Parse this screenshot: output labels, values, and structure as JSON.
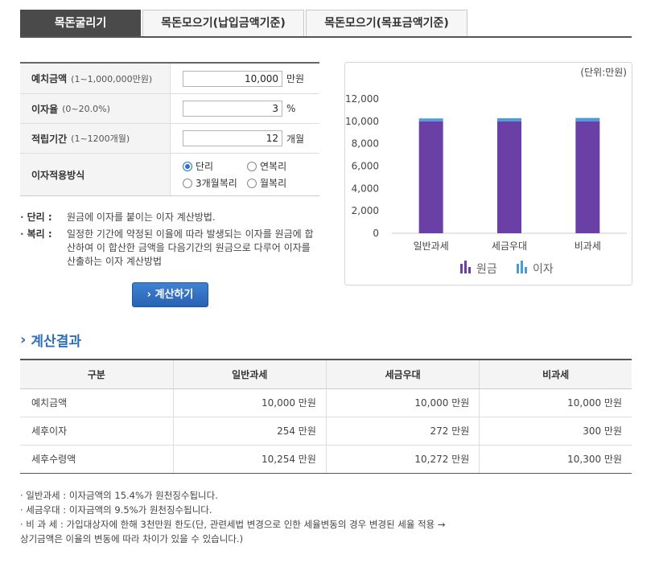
{
  "tabs": [
    {
      "label": "목돈굴리기"
    },
    {
      "label": "목돈모으기(납입금액기준)"
    },
    {
      "label": "목돈모으기(목표금액기준)"
    }
  ],
  "form": {
    "deposit": {
      "label": "예치금액",
      "range": "(1~1,000,000만원)",
      "value": "10,000",
      "unit": "만원"
    },
    "rate": {
      "label": "이자율",
      "range": "(0~20.0%)",
      "value": "3",
      "unit": "%"
    },
    "period": {
      "label": "적립기간",
      "range": "(1~1200개월)",
      "value": "12",
      "unit": "개월"
    },
    "method": {
      "label": "이자적용방식",
      "options": [
        "단리",
        "연복리",
        "3개월복리",
        "월복리"
      ],
      "selected": "단리"
    }
  },
  "definitions": [
    {
      "term": "단리 :",
      "text": "원금에 이자를 붙이는 이자 계산방법."
    },
    {
      "term": "복리 :",
      "text": "일정한 기간에 약정된 이율에 따라 발생되는 이자를 원금에 합산하여 이 합산한 금액을 다음기간의 원금으로 다루어 이자를 산출하는 이자 계산방법"
    }
  ],
  "calc_button": "계산하기",
  "chart_data": {
    "type": "bar",
    "stacked": true,
    "unit_label": "(단위:만원)",
    "categories": [
      "일반과세",
      "세금우대",
      "비과세"
    ],
    "series": [
      {
        "name": "원금",
        "values": [
          10000,
          10000,
          10000
        ],
        "color": "#6a3fa6"
      },
      {
        "name": "이자",
        "values": [
          254,
          272,
          300
        ],
        "color": "#4a9bd8"
      }
    ],
    "yticks": [
      "0",
      "2,000",
      "4,000",
      "6,000",
      "8,000",
      "10,000",
      "12,000"
    ],
    "ylim": [
      0,
      12000
    ],
    "grid": false,
    "legend": "bottom"
  },
  "result": {
    "title": "계산결과",
    "headers": [
      "구분",
      "일반과세",
      "세금우대",
      "비과세"
    ],
    "rows": [
      [
        "예치금액",
        "10,000 만원",
        "10,000 만원",
        "10,000 만원"
      ],
      [
        "세후이자",
        "254 만원",
        "272 만원",
        "300 만원"
      ],
      [
        "세후수령액",
        "10,254 만원",
        "10,272 만원",
        "10,300 만원"
      ]
    ]
  },
  "notes": [
    "· 일반과세 : 이자금액의 15.4%가 원천징수됩니다.",
    "· 세금우대 : 이자금액의 9.5%가 원천징수됩니다.",
    "· 비 과 세 : 가입대상자에 한해 3천만원 한도(단, 관련세법 변경으로 인한 세율변동의 경우 변경된 세율 적용 →",
    "상기금액은 이율의 변동에 따라 차이가 있을 수 있습니다.)"
  ]
}
